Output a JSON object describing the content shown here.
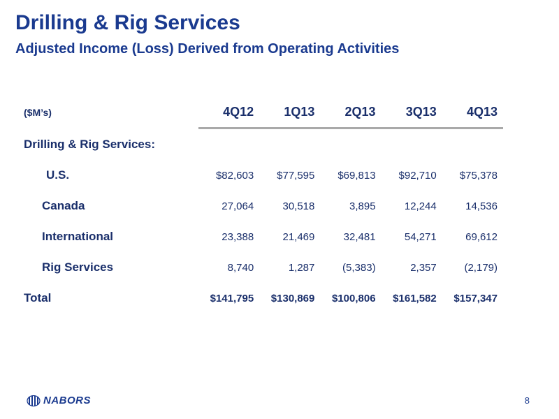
{
  "slide": {
    "title": "Drilling & Rig Services",
    "subtitle": "Adjusted Income (Loss) Derived from Operating Activities",
    "page_number": "8",
    "logo_text": "NABORS"
  },
  "table": {
    "unit_label": "($M’s)",
    "columns": [
      "4Q12",
      "1Q13",
      "2Q13",
      "3Q13",
      "4Q13"
    ],
    "section_label": "Drilling & Rig Services:",
    "rows": [
      {
        "label": "U.S.",
        "values": [
          "$82,603",
          "$77,595",
          "$69,813",
          "$92,710",
          "$75,378"
        ]
      },
      {
        "label": "Canada",
        "values": [
          "27,064",
          "30,518",
          "3,895",
          "12,244",
          "14,536"
        ]
      },
      {
        "label": "International",
        "values": [
          "23,388",
          "21,469",
          "32,481",
          "54,271",
          "69,612"
        ]
      },
      {
        "label": "Rig Services",
        "values": [
          "8,740",
          "1,287",
          "(5,383)",
          "2,357",
          "(2,179)"
        ]
      }
    ],
    "total": {
      "label": "Total",
      "values": [
        "$141,795",
        "$130,869",
        "$100,806",
        "$161,582",
        "$157,347"
      ]
    }
  },
  "colors": {
    "primary": "#1a3a8f",
    "rule": "#a9a9a9"
  }
}
